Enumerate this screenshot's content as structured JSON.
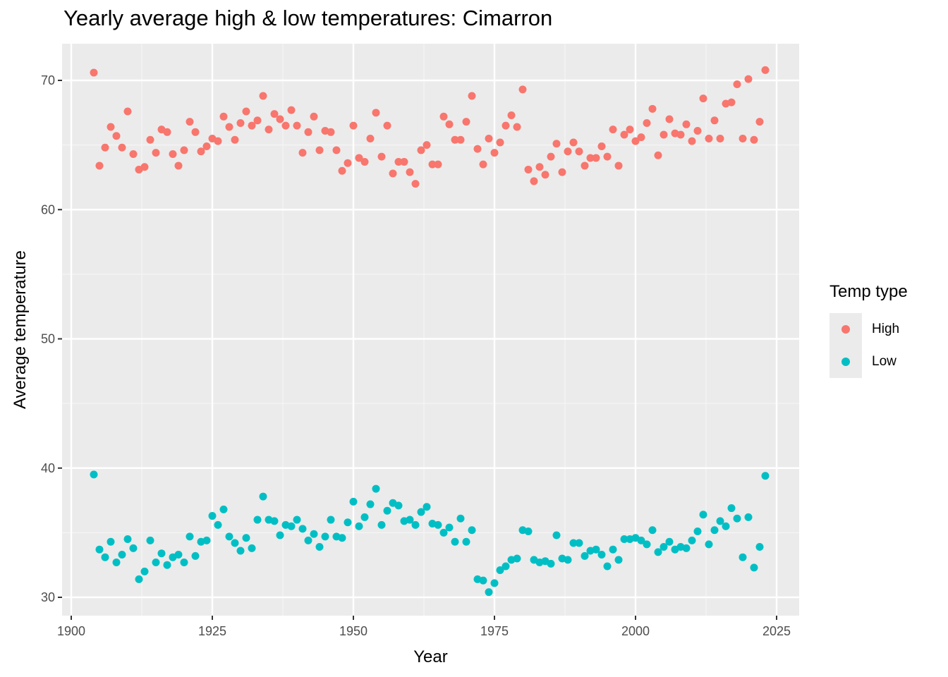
{
  "chart_data": {
    "type": "scatter",
    "title": "Yearly average high & low temperatures: Cimarron",
    "xlabel": "Year",
    "ylabel": "Average temperature",
    "xlim": [
      1900,
      2025
    ],
    "ylim": [
      30,
      70
    ],
    "x_ticks": [
      1900,
      1925,
      1950,
      1975,
      2000,
      2025
    ],
    "y_ticks": [
      30,
      40,
      50,
      60,
      70
    ],
    "grid": true,
    "legend": {
      "title": "Temp type",
      "position": "right"
    },
    "x": [
      1904,
      1905,
      1906,
      1907,
      1908,
      1909,
      1910,
      1911,
      1912,
      1913,
      1914,
      1915,
      1916,
      1917,
      1918,
      1919,
      1920,
      1921,
      1922,
      1923,
      1924,
      1925,
      1926,
      1927,
      1928,
      1929,
      1930,
      1931,
      1932,
      1933,
      1934,
      1935,
      1936,
      1937,
      1938,
      1939,
      1940,
      1941,
      1942,
      1943,
      1944,
      1945,
      1946,
      1947,
      1948,
      1949,
      1950,
      1951,
      1952,
      1953,
      1954,
      1955,
      1956,
      1957,
      1958,
      1959,
      1960,
      1961,
      1962,
      1963,
      1964,
      1965,
      1966,
      1967,
      1968,
      1969,
      1970,
      1971,
      1972,
      1973,
      1974,
      1975,
      1976,
      1977,
      1978,
      1979,
      1980,
      1981,
      1982,
      1983,
      1984,
      1985,
      1986,
      1987,
      1988,
      1989,
      1990,
      1991,
      1992,
      1993,
      1994,
      1995,
      1996,
      1997,
      1998,
      1999,
      2000,
      2001,
      2002,
      2003,
      2004,
      2005,
      2006,
      2007,
      2008,
      2009,
      2010,
      2011,
      2012,
      2013,
      2014,
      2015,
      2016,
      2017,
      2018,
      2019,
      2020,
      2021,
      2022,
      2023
    ],
    "series": [
      {
        "name": "High",
        "color": "#F8766D",
        "values": [
          70.6,
          63.4,
          64.8,
          66.4,
          65.7,
          64.8,
          67.6,
          64.3,
          63.1,
          63.3,
          65.4,
          64.4,
          66.2,
          66.0,
          64.3,
          63.4,
          64.6,
          66.8,
          66.0,
          64.5,
          64.9,
          65.5,
          65.3,
          67.2,
          66.4,
          65.4,
          66.7,
          67.6,
          66.5,
          66.9,
          68.8,
          66.2,
          67.4,
          67.0,
          66.5,
          67.7,
          66.5,
          64.4,
          66.0,
          67.2,
          64.6,
          66.1,
          66.0,
          64.6,
          63.0,
          63.6,
          66.5,
          64.0,
          63.7,
          65.5,
          67.5,
          64.1,
          66.5,
          62.8,
          63.7,
          63.7,
          62.9,
          62.0,
          64.6,
          65.0,
          63.5,
          63.5,
          67.2,
          66.6,
          65.4,
          65.4,
          66.8,
          68.8,
          64.7,
          63.5,
          65.5,
          64.4,
          65.2,
          66.5,
          67.3,
          66.4,
          69.3,
          63.1,
          62.2,
          63.3,
          62.7,
          64.1,
          65.1,
          62.9,
          64.5,
          65.2,
          64.5,
          63.4,
          64.0,
          64.0,
          64.9,
          64.1,
          66.2,
          63.4,
          65.8,
          66.2,
          65.3,
          65.6,
          66.7,
          67.8,
          64.2,
          65.8,
          67.0,
          65.9,
          65.8,
          66.6,
          65.3,
          66.1,
          68.6,
          65.5,
          66.9,
          65.5,
          68.2,
          68.3,
          69.7,
          65.5,
          70.1,
          65.4,
          66.8,
          70.8
        ]
      },
      {
        "name": "Low",
        "color": "#00BFC4",
        "values": [
          39.5,
          33.7,
          33.1,
          34.3,
          32.7,
          33.3,
          34.5,
          33.8,
          31.4,
          32.0,
          34.4,
          32.7,
          33.4,
          32.5,
          33.1,
          33.3,
          32.7,
          34.7,
          33.2,
          34.3,
          34.4,
          36.3,
          35.6,
          36.8,
          34.7,
          34.2,
          33.6,
          34.6,
          33.8,
          36.0,
          37.8,
          36.0,
          35.9,
          34.8,
          35.6,
          35.5,
          36.0,
          35.3,
          34.4,
          34.9,
          33.9,
          34.7,
          36.0,
          34.7,
          34.6,
          35.8,
          37.4,
          35.5,
          36.2,
          37.2,
          38.4,
          35.6,
          36.7,
          37.3,
          37.1,
          35.9,
          36.0,
          35.6,
          36.6,
          37.0,
          35.7,
          35.6,
          35.0,
          35.4,
          34.3,
          36.1,
          34.3,
          35.2,
          31.4,
          31.3,
          30.4,
          31.1,
          32.1,
          32.4,
          32.9,
          33.0,
          35.2,
          35.1,
          32.9,
          32.7,
          32.8,
          32.6,
          34.8,
          33.0,
          32.9,
          34.2,
          34.2,
          33.2,
          33.6,
          33.7,
          33.3,
          32.4,
          33.7,
          32.9,
          34.5,
          34.5,
          34.6,
          34.4,
          34.1,
          35.2,
          33.5,
          33.9,
          34.3,
          33.7,
          33.9,
          33.8,
          34.4,
          35.1,
          36.4,
          34.1,
          35.2,
          35.9,
          35.5,
          36.9,
          36.1,
          33.1,
          36.2,
          32.3,
          33.9,
          39.4
        ]
      }
    ]
  }
}
